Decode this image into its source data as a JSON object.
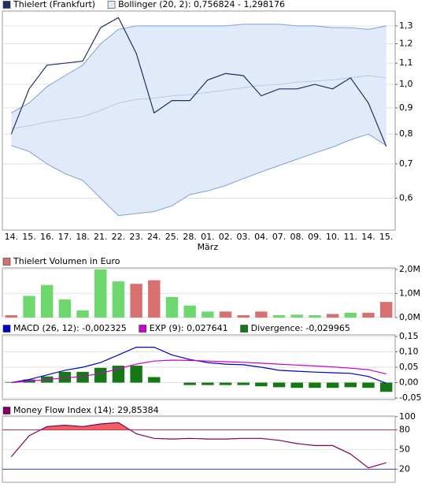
{
  "chart_data": [
    {
      "type": "line",
      "log_scale": true,
      "grid": true,
      "categories": [
        "14.",
        "15.",
        "16.",
        "17.",
        "18.",
        "21.",
        "22.",
        "23.",
        "24.",
        "25.",
        "28.",
        "01.",
        "02.",
        "03.",
        "04.",
        "07.",
        "08.",
        "09.",
        "10.",
        "11.",
        "14.",
        "15."
      ],
      "month_label": "März",
      "series": [
        {
          "name": "Thielert (Frankfurt)",
          "color": "#23305f",
          "values": [
            0.8,
            0.98,
            1.09,
            1.1,
            1.11,
            1.29,
            1.35,
            1.15,
            0.88,
            0.93,
            0.93,
            1.02,
            1.05,
            1.04,
            0.95,
            0.98,
            0.98,
            1.0,
            0.98,
            1.03,
            0.92,
            0.757
          ]
        }
      ],
      "bollinger": {
        "name": "Bollinger (20, 2): 0,756824 - 1,298176",
        "color": "#7f9fd8",
        "fill": "#e0eaf9",
        "middle_color": "#b6c8ec",
        "upper": [
          0.88,
          0.92,
          0.99,
          1.04,
          1.09,
          1.2,
          1.28,
          1.3,
          1.3,
          1.3,
          1.3,
          1.3,
          1.3,
          1.31,
          1.31,
          1.31,
          1.3,
          1.3,
          1.29,
          1.29,
          1.28,
          1.3
        ],
        "middle": [
          0.82,
          0.83,
          0.845,
          0.855,
          0.865,
          0.89,
          0.92,
          0.935,
          0.94,
          0.95,
          0.955,
          0.965,
          0.975,
          0.985,
          0.995,
          1.0,
          1.01,
          1.015,
          1.02,
          1.03,
          1.04,
          1.03
        ],
        "lower": [
          0.76,
          0.74,
          0.7,
          0.67,
          0.65,
          0.6,
          0.555,
          0.56,
          0.565,
          0.58,
          0.61,
          0.62,
          0.635,
          0.655,
          0.675,
          0.695,
          0.715,
          0.735,
          0.755,
          0.78,
          0.8,
          0.76
        ]
      },
      "ylim": [
        0.52,
        1.39
      ],
      "yticks": [
        {
          "value": 0.6,
          "label": "0,6"
        },
        {
          "value": 0.7,
          "label": "0,7"
        },
        {
          "value": 0.8,
          "label": "0,8"
        },
        {
          "value": 0.9,
          "label": "0,9"
        },
        {
          "value": 1.0,
          "label": "1,0"
        },
        {
          "value": 1.1,
          "label": "1,1"
        },
        {
          "value": 1.2,
          "label": "1,2"
        },
        {
          "value": 1.3,
          "label": "1,3"
        }
      ]
    },
    {
      "type": "bar",
      "grid": true,
      "series": [
        {
          "name": "Thielert Volumen in Euro",
          "color": "#d87070",
          "values": [
            100000,
            900000,
            1350000,
            750000,
            300000,
            2000000,
            1500000,
            1400000,
            1550000,
            850000,
            500000,
            250000,
            250000,
            100000,
            250000,
            100000,
            120000,
            100000,
            150000,
            200000,
            200000,
            650000
          ],
          "colors": [
            "#d87070",
            "#6dd86d",
            "#6dd86d",
            "#6dd86d",
            "#6dd86d",
            "#6dd86d",
            "#6dd86d",
            "#d87070",
            "#d87070",
            "#6dd86d",
            "#6dd86d",
            "#6dd86d",
            "#d87070",
            "#d87070",
            "#d87070",
            "#6dd86d",
            "#6dd86d",
            "#6dd86d",
            "#d87070",
            "#6dd86d",
            "#d87070",
            "#d87070"
          ]
        }
      ],
      "ylim": [
        0,
        2060000
      ],
      "yticks": [
        {
          "value": 0,
          "label": "0,0M"
        },
        {
          "value": 1000000,
          "label": "1,0M"
        },
        {
          "value": 2000000,
          "label": "2,0M"
        }
      ]
    },
    {
      "type": "line",
      "grid": true,
      "series": [
        {
          "name": "MACD (26, 12): -0,002325",
          "color": "#0000cc",
          "type": "line",
          "values": [
            0,
            0.01,
            0.025,
            0.04,
            0.05,
            0.065,
            0.09,
            0.115,
            0.115,
            0.09,
            0.075,
            0.065,
            0.06,
            0.058,
            0.05,
            0.04,
            0.037,
            0.034,
            0.032,
            0.03,
            0.02,
            -0.002
          ]
        },
        {
          "name": "EXP (9): 0,027641",
          "color": "#cc00cc",
          "type": "line",
          "values": [
            0,
            0.005,
            0.01,
            0.015,
            0.02,
            0.03,
            0.045,
            0.06,
            0.07,
            0.073,
            0.072,
            0.07,
            0.068,
            0.066,
            0.063,
            0.06,
            0.057,
            0.054,
            0.051,
            0.047,
            0.042,
            0.028
          ]
        },
        {
          "name": "Divergence: -0,029965",
          "color": "#147814",
          "type": "bar",
          "values": [
            0.002,
            0.01,
            0.02,
            0.035,
            0.035,
            0.048,
            0.055,
            0.055,
            0.018,
            0,
            -0.008,
            -0.008,
            -0.008,
            -0.008,
            -0.012,
            -0.015,
            -0.017,
            -0.017,
            -0.017,
            -0.015,
            -0.017,
            -0.03
          ]
        }
      ],
      "ylim": [
        -0.055,
        0.155
      ],
      "yticks": [
        {
          "value": -0.05,
          "label": "-0,05"
        },
        {
          "value": 0,
          "label": "0,00"
        },
        {
          "value": 0.05,
          "label": "0,05"
        },
        {
          "value": 0.1,
          "label": "0,10"
        },
        {
          "value": 0.15,
          "label": "0,15"
        }
      ]
    },
    {
      "type": "line",
      "grid": true,
      "series": [
        {
          "name": "Money Flow Index (14): 29,85384",
          "color": "#800060",
          "values": [
            39,
            71,
            85,
            87,
            85,
            89,
            91,
            74,
            67,
            66,
            67,
            66,
            66,
            67,
            67,
            64,
            59,
            56,
            56,
            43,
            22,
            29.85
          ]
        }
      ],
      "bands": [
        {
          "value": 80,
          "color": "#d03050",
          "fill": "#f06060"
        },
        {
          "value": 20,
          "color": "#3040c0"
        }
      ],
      "ylim": [
        0,
        101
      ],
      "yticks": [
        20,
        50,
        80,
        100
      ]
    }
  ]
}
